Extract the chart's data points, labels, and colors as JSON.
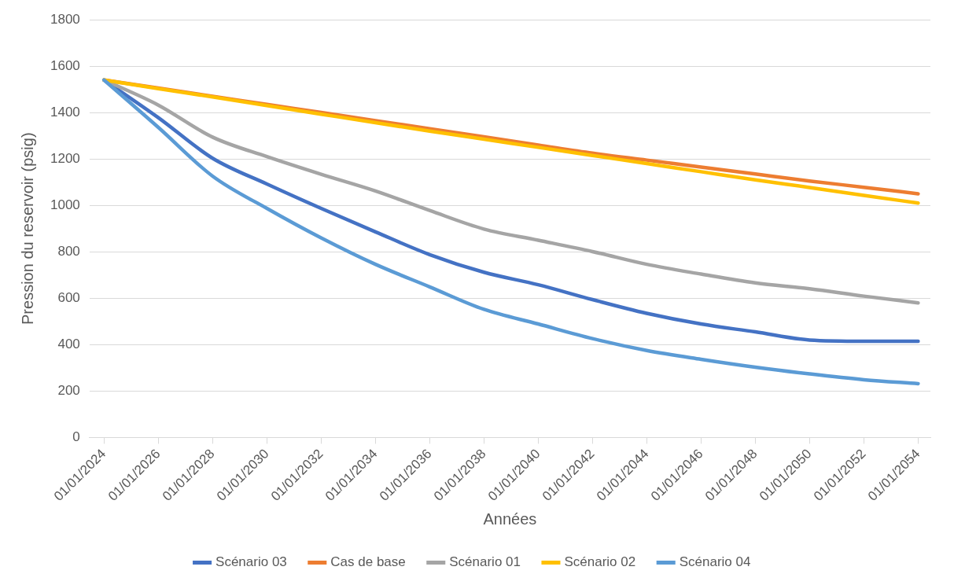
{
  "chart_data": {
    "type": "line",
    "xlabel": "Années",
    "ylabel": "Pression du reservoir (psig)",
    "x": [
      "2024-01-01",
      "2026-01-01",
      "2028-01-01",
      "2030-01-01",
      "2032-01-01",
      "2034-01-01",
      "2036-01-01",
      "2038-01-01",
      "2040-01-01",
      "2042-01-01",
      "2044-01-01",
      "2046-01-01",
      "2048-01-01",
      "2050-01-01",
      "2052-01-01",
      "2054-01-01"
    ],
    "series": [
      {
        "name": "Scénario 03",
        "color": "#4472c4",
        "values": [
          1540,
          1378,
          1203,
          1092,
          987,
          886,
          788,
          712,
          658,
          594,
          535,
          489,
          455,
          420,
          415,
          415
        ]
      },
      {
        "name": "Cas de base",
        "color": "#ed7d31",
        "values": [
          1540,
          1505,
          1470,
          1435,
          1400,
          1365,
          1330,
          1295,
          1260,
          1225,
          1195,
          1165,
          1135,
          1105,
          1078,
          1050
        ]
      },
      {
        "name": "Scénario 01",
        "color": "#a5a5a5",
        "values": [
          1540,
          1432,
          1294,
          1210,
          1134,
          1062,
          978,
          898,
          850,
          801,
          746,
          704,
          666,
          641,
          609,
          580
        ]
      },
      {
        "name": "Scénario 02",
        "color": "#ffc000",
        "values": [
          1540,
          1503,
          1467,
          1430,
          1393,
          1356,
          1320,
          1285,
          1250,
          1215,
          1180,
          1145,
          1110,
          1077,
          1043,
          1010
        ]
      },
      {
        "name": "Scénario 04",
        "color": "#5b9bd5",
        "values": [
          1540,
          1336,
          1126,
          987,
          860,
          746,
          649,
          552,
          489,
          426,
          375,
          337,
          303,
          274,
          249,
          232
        ]
      }
    ],
    "xlim": [
      "2023-06-20",
      "2054-06-15"
    ],
    "xticks": [
      {
        "value": "2024-01-01",
        "label": "01/01/2024"
      },
      {
        "value": "2026-01-01",
        "label": "01/01/2026"
      },
      {
        "value": "2028-01-01",
        "label": "01/01/2028"
      },
      {
        "value": "2030-01-01",
        "label": "01/01/2030"
      },
      {
        "value": "2032-01-01",
        "label": "01/01/2032"
      },
      {
        "value": "2034-01-01",
        "label": "01/01/2034"
      },
      {
        "value": "2036-01-01",
        "label": "01/01/2036"
      },
      {
        "value": "2038-01-01",
        "label": "01/01/2038"
      },
      {
        "value": "2040-01-01",
        "label": "01/01/2040"
      },
      {
        "value": "2042-01-01",
        "label": "01/01/2042"
      },
      {
        "value": "2044-01-01",
        "label": "01/01/2044"
      },
      {
        "value": "2046-01-01",
        "label": "01/01/2046"
      },
      {
        "value": "2048-01-01",
        "label": "01/01/2048"
      },
      {
        "value": "2050-01-01",
        "label": "01/01/2050"
      },
      {
        "value": "2052-01-01",
        "label": "01/01/2052"
      },
      {
        "value": "2054-01-01",
        "label": "01/01/2054"
      }
    ],
    "ylim": [
      0,
      1800
    ],
    "yticks": [
      0,
      200,
      400,
      600,
      800,
      1000,
      1200,
      1400,
      1600,
      1800
    ],
    "grid": "y",
    "legend": "bottom",
    "marker": "none",
    "line_style": "solid"
  }
}
